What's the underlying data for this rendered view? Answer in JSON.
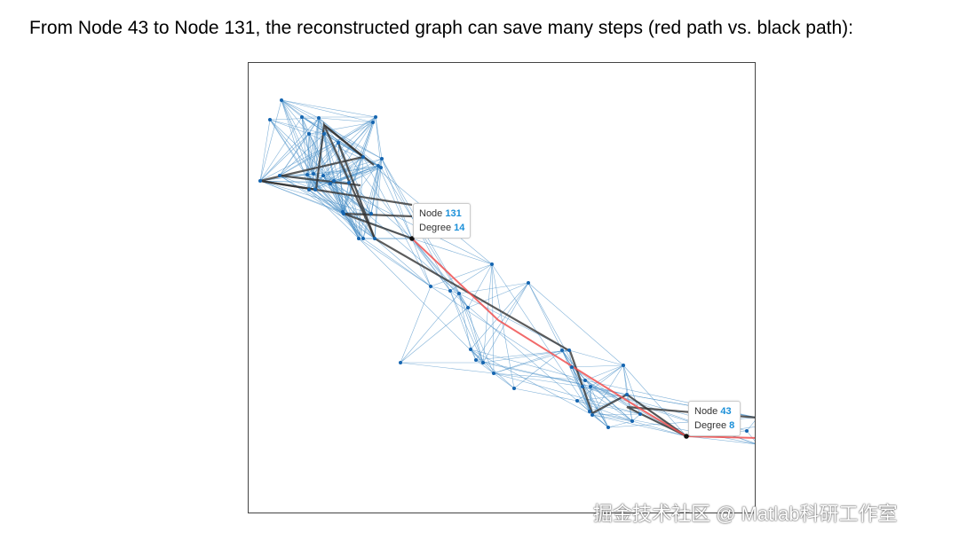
{
  "title": "From Node 43 to Node 131, the reconstructed graph can save many steps (red path vs. black path):",
  "tooltips": [
    {
      "node_label": "Node",
      "node_value": "131",
      "degree_label": "Degree",
      "degree_value": "14"
    },
    {
      "node_label": "Node",
      "node_value": "43",
      "degree_label": "Degree",
      "degree_value": "8"
    }
  ],
  "legend_colors": {
    "edge": "#4a90c8",
    "node": "#1565b0",
    "short_path": "#f05050",
    "long_path": "#333333"
  },
  "watermark": "掘金技术社区 @ Matlab科研工作室"
}
